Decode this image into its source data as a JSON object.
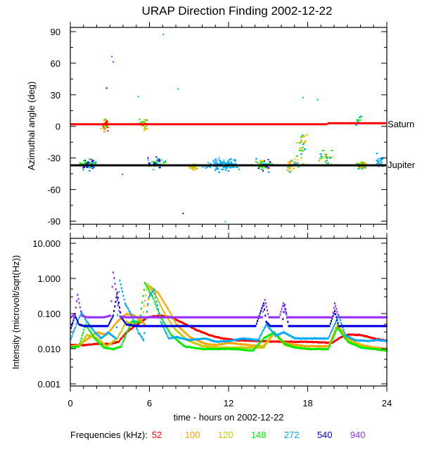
{
  "chart_data": [
    {
      "type": "scatter",
      "title": "URAP Direction Finding  2002-12-22",
      "xlabel": "",
      "ylabel": "Azimuthal angle (deg)",
      "xlim": [
        0,
        24
      ],
      "ylim": [
        -93,
        94
      ],
      "yticks": [
        90,
        60,
        30,
        0,
        -30,
        -60,
        -90
      ],
      "ytick_labels": [
        "90",
        "60",
        "30",
        "0",
        "-30",
        "-60",
        "-90"
      ],
      "reference_lines": [
        {
          "name": "Saturn",
          "label": "Saturn",
          "color": "#ff0000",
          "segments": [
            [
              0,
              2,
              19.5,
              2
            ],
            [
              19.5,
              3,
              24,
              3
            ]
          ]
        },
        {
          "name": "Jupiter",
          "label": "Jupiter",
          "color": "#000000",
          "segments": [
            [
              0,
              -37,
              24,
              -37
            ]
          ]
        }
      ],
      "clusters": [
        {
          "center": [
            1.3,
            -36
          ],
          "spread": [
            0.7,
            7
          ],
          "count": 60,
          "colors": [
            "#00aaff",
            "#0000e0",
            "#00ee00"
          ]
        },
        {
          "center": [
            2.6,
            2
          ],
          "spread": [
            0.4,
            8
          ],
          "count": 40,
          "colors": [
            "#c8c800",
            "#ffa500",
            "#00ee00",
            "#ff0000"
          ]
        },
        {
          "center": [
            5.5,
            3
          ],
          "spread": [
            0.5,
            7
          ],
          "count": 25,
          "colors": [
            "#c8c800",
            "#ffa500",
            "#00ee00"
          ]
        },
        {
          "center": [
            6.5,
            -34
          ],
          "spread": [
            1.0,
            9
          ],
          "count": 40,
          "colors": [
            "#00aaff",
            "#00ee00",
            "#0000e0"
          ]
        },
        {
          "center": [
            9.3,
            -38
          ],
          "spread": [
            0.5,
            4
          ],
          "count": 25,
          "colors": [
            "#c8c800",
            "#ffa500"
          ]
        },
        {
          "center": [
            11.5,
            -36
          ],
          "spread": [
            1.8,
            8
          ],
          "count": 110,
          "colors": [
            "#00aaff"
          ]
        },
        {
          "center": [
            14.6,
            -36
          ],
          "spread": [
            0.9,
            8
          ],
          "count": 60,
          "colors": [
            "#00aaff",
            "#c8c800",
            "#00ee00",
            "#0000e0"
          ]
        },
        {
          "center": [
            16.7,
            -36
          ],
          "spread": [
            0.6,
            8
          ],
          "count": 30,
          "colors": [
            "#00aaff",
            "#c8c800",
            "#ffa500"
          ]
        },
        {
          "center": [
            17.5,
            -20
          ],
          "spread": [
            0.5,
            25
          ],
          "count": 30,
          "colors": [
            "#c8c800",
            "#00aaff",
            "#00ee00",
            "#ffa500"
          ]
        },
        {
          "center": [
            19.3,
            -30
          ],
          "spread": [
            0.8,
            10
          ],
          "count": 30,
          "colors": [
            "#c8c800",
            "#00ee00",
            "#00aaff"
          ]
        },
        {
          "center": [
            22.0,
            -36
          ],
          "spread": [
            0.5,
            5
          ],
          "count": 70,
          "colors": [
            "#00ee00",
            "#c8c800",
            "#00aaff",
            "#ffa500"
          ]
        },
        {
          "center": [
            23.4,
            -33
          ],
          "spread": [
            0.5,
            9
          ],
          "count": 25,
          "colors": [
            "#00aaff"
          ]
        },
        {
          "center": [
            21.8,
            5
          ],
          "spread": [
            0.3,
            10
          ],
          "count": 12,
          "colors": [
            "#00aaff",
            "#00ee00"
          ]
        }
      ],
      "outliers": [
        {
          "x": 3.1,
          "y": 67,
          "color": "#9933ff"
        },
        {
          "x": 3.2,
          "y": 62,
          "color": "#9933ff"
        },
        {
          "x": 2.7,
          "y": 37,
          "color": "#0000e0"
        },
        {
          "x": 7.0,
          "y": 88,
          "color": "#00aaff"
        },
        {
          "x": 8.1,
          "y": 36,
          "color": "#00aaff"
        },
        {
          "x": 5.1,
          "y": 29,
          "color": "#00aaff"
        },
        {
          "x": 8.5,
          "y": -82,
          "color": "#0000e0"
        },
        {
          "x": 11.7,
          "y": -90,
          "color": "#00aaff"
        },
        {
          "x": 17.6,
          "y": 28,
          "color": "#00aaff"
        },
        {
          "x": 18.7,
          "y": 26,
          "color": "#00aaff"
        },
        {
          "x": 3.9,
          "y": -45,
          "color": "#9933ff"
        }
      ]
    },
    {
      "type": "line",
      "xlabel": "time - hours on 2002-12-22",
      "ylabel": "Intensity (microvolt/sqrt(Hz))",
      "xlim": [
        0,
        24
      ],
      "ylim": [
        0.00087,
        13.8
      ],
      "yscale": "log",
      "xticks": [
        0,
        6,
        12,
        18,
        24
      ],
      "xtick_labels": [
        "0",
        "6",
        "12",
        "18",
        "24"
      ],
      "yticks": [
        10,
        1,
        0.1,
        0.01,
        0.001
      ],
      "ytick_labels": [
        "10.000",
        "1.000",
        "0.100",
        "0.010",
        "0.001"
      ],
      "legend_title": "Frequencies (kHz):",
      "series": [
        {
          "name": "52",
          "color": "#ff0000",
          "x": [
            0,
            1,
            2,
            3,
            3.6,
            4.2,
            5,
            5.8,
            6.8,
            7.6,
            8.5,
            9.5,
            10.5,
            11.5,
            12.5,
            14,
            16,
            18,
            19.8,
            20.4,
            21,
            22,
            23,
            24
          ],
          "y": [
            0.013,
            0.013,
            0.014,
            0.014,
            0.016,
            0.03,
            0.05,
            0.08,
            0.09,
            0.08,
            0.055,
            0.035,
            0.025,
            0.02,
            0.018,
            0.017,
            0.016,
            0.016,
            0.015,
            0.021,
            0.026,
            0.025,
            0.02,
            0.017
          ]
        },
        {
          "name": "100",
          "color": "#ffa500",
          "x": [
            0,
            0.6,
            1.3,
            2.0,
            2.7,
            3.5,
            4.2,
            4.8,
            5.6,
            6.0,
            6.6,
            7.3,
            8.0,
            9.0,
            10.2,
            11,
            12,
            13.5,
            14.6,
            15.4,
            16.2,
            17,
            18,
            19.5,
            20.2,
            21,
            22,
            23,
            24
          ],
          "y": [
            0.012,
            0.013,
            0.02,
            0.03,
            0.025,
            0.06,
            0.1,
            0.09,
            0.05,
            0.6,
            0.4,
            0.15,
            0.05,
            0.022,
            0.014,
            0.013,
            0.015,
            0.013,
            0.012,
            0.03,
            0.015,
            0.013,
            0.012,
            0.012,
            0.05,
            0.02,
            0.013,
            0.011,
            0.01
          ]
        },
        {
          "name": "120",
          "color": "#c8c800",
          "x": [
            0,
            0.6,
            1.2,
            2.0,
            2.7,
            3.5,
            4.2,
            4.8,
            5.4,
            5.8,
            6.4,
            7.0,
            7.8,
            8.8,
            10,
            11,
            12,
            13.5,
            14.6,
            15.4,
            16.2,
            17,
            18,
            19.5,
            20.2,
            21,
            22,
            23,
            24
          ],
          "y": [
            0.011,
            0.012,
            0.025,
            0.02,
            0.012,
            0.02,
            0.06,
            0.05,
            0.08,
            0.7,
            0.35,
            0.12,
            0.04,
            0.018,
            0.012,
            0.011,
            0.011,
            0.011,
            0.011,
            0.028,
            0.013,
            0.011,
            0.01,
            0.01,
            0.045,
            0.018,
            0.012,
            0.01,
            0.009
          ]
        },
        {
          "name": "148",
          "color": "#00ee00",
          "x": [
            0,
            0.6,
            1.1,
            1.8,
            2.5,
            3.2,
            3.8,
            4.6,
            5.2,
            5.6,
            6.2,
            6.8,
            7.6,
            8.6,
            10,
            11,
            12.5,
            13.8,
            14.6,
            15.4,
            16.2,
            17,
            18.2,
            19.5,
            20.2,
            21,
            22,
            23,
            24
          ],
          "y": [
            0.011,
            0.012,
            0.05,
            0.02,
            0.011,
            0.01,
            0.012,
            0.06,
            0.06,
            0.75,
            0.3,
            0.08,
            0.025,
            0.012,
            0.01,
            0.01,
            0.01,
            0.009,
            0.02,
            0.03,
            0.014,
            0.011,
            0.01,
            0.01,
            0.04,
            0.016,
            0.011,
            0.01,
            0.009
          ]
        },
        {
          "name": "272",
          "color": "#00aaff",
          "x": [
            0,
            0.4,
            0.8,
            1.2,
            1.8,
            2.3,
            2.8,
            3.4,
            3.7,
            4.1,
            4.6,
            5.1,
            5.5,
            5.9,
            6.3,
            6.8,
            7.4,
            8.0,
            9.0,
            10.2,
            11.0,
            12,
            13,
            14.2,
            14.8,
            15.5,
            16.1,
            17,
            18,
            19.5,
            20.3,
            20.8,
            21.5,
            22.5,
            23.2,
            24
          ],
          "y": [
            0.02,
            0.05,
            0.11,
            0.06,
            0.03,
            0.02,
            0.03,
            0.02,
            0.9,
            0.2,
            0.09,
            0.03,
            0.018,
            0.3,
            0.5,
            0.06,
            0.02,
            0.022,
            0.018,
            0.02,
            0.016,
            0.017,
            0.02,
            0.018,
            0.05,
            0.024,
            0.03,
            0.02,
            0.02,
            0.02,
            0.09,
            0.025,
            0.018,
            0.017,
            0.018,
            0.017
          ]
        },
        {
          "name": "540",
          "color": "#0000e0",
          "x": [
            0,
            0.3,
            0.6,
            1.0,
            2.0,
            2.8,
            3.2,
            3.5,
            3.8,
            4.2,
            5.0,
            6.0,
            7.0,
            8.0,
            10,
            12,
            14,
            14.6,
            14.8,
            15.1,
            16,
            16.2,
            16.5,
            18,
            19.6,
            20.0,
            20.3,
            21,
            22,
            24
          ],
          "y": [
            0.04,
            0.09,
            0.05,
            0.045,
            0.045,
            0.045,
            0.09,
            0.4,
            0.08,
            0.05,
            0.045,
            0.045,
            0.045,
            0.045,
            0.045,
            0.045,
            0.045,
            0.2,
            0.06,
            0.045,
            0.045,
            0.18,
            0.045,
            0.045,
            0.045,
            0.12,
            0.045,
            0.045,
            0.045,
            0.045
          ]
        },
        {
          "name": "940",
          "color": "#9933ff",
          "x": [
            0,
            0.3,
            0.5,
            0.8,
            1.2,
            2.5,
            3.0,
            3.2,
            3.4,
            3.7,
            4.2,
            5.0,
            6.0,
            10,
            14.0,
            14.5,
            14.7,
            15.0,
            15.8,
            16.1,
            16.4,
            18,
            19.8,
            20.0,
            20.3,
            22,
            24
          ],
          "y": [
            0.08,
            0.1,
            0.35,
            0.09,
            0.08,
            0.08,
            0.09,
            1.5,
            0.5,
            0.085,
            0.08,
            0.08,
            0.08,
            0.08,
            0.08,
            0.08,
            0.25,
            0.08,
            0.08,
            0.2,
            0.08,
            0.08,
            0.08,
            0.2,
            0.08,
            0.08,
            0.08
          ]
        }
      ]
    }
  ]
}
